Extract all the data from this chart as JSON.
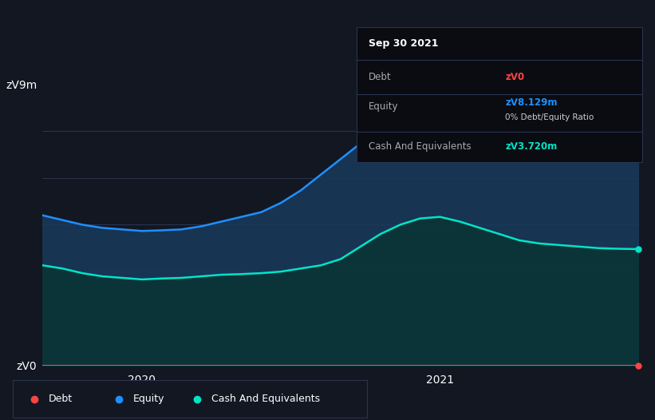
{
  "bg_color": "#131722",
  "plot_bg_color": "#131722",
  "grid_color": "#2a3350",
  "equity_color": "#1e90ff",
  "cash_color": "#00e5c8",
  "debt_color": "#ff4444",
  "equity_fill": "#1a3a5c",
  "cash_fill": "#0a3535",
  "ylim": [
    0,
    9000000
  ],
  "ytick_labels": [
    "zᐯ0",
    "zᐯ9m"
  ],
  "xlabel_2020": "2020",
  "xlabel_2021": "2021",
  "tooltip_title": "Sep 30 2021",
  "tooltip_debt_label": "Debt",
  "tooltip_debt_value": "zᐯ0",
  "tooltip_equity_label": "Equity",
  "tooltip_equity_value": "zᐯ8.129m",
  "tooltip_ratio": "0% Debt/Equity Ratio",
  "tooltip_cash_label": "Cash And Equivalents",
  "tooltip_cash_value": "zᐯ3.720m",
  "legend_debt": "Debt",
  "legend_equity": "Equity",
  "legend_cash": "Cash And Equivalents",
  "x_values": [
    0,
    1,
    2,
    3,
    4,
    5,
    6,
    7,
    8,
    9,
    10,
    11,
    12,
    13,
    14,
    15,
    16,
    17,
    18,
    19,
    20,
    21,
    22,
    23,
    24,
    25,
    26,
    27,
    28,
    29,
    30
  ],
  "equity_values": [
    4800000,
    4650000,
    4500000,
    4400000,
    4350000,
    4300000,
    4320000,
    4350000,
    4450000,
    4600000,
    4750000,
    4900000,
    5200000,
    5600000,
    6100000,
    6600000,
    7100000,
    7600000,
    8100000,
    8600000,
    8950000,
    9100000,
    9000000,
    8900000,
    8700000,
    8500000,
    8400000,
    8300000,
    8200000,
    8150000,
    8129000
  ],
  "cash_values": [
    3200000,
    3100000,
    2950000,
    2850000,
    2800000,
    2750000,
    2780000,
    2800000,
    2850000,
    2900000,
    2920000,
    2950000,
    3000000,
    3100000,
    3200000,
    3400000,
    3800000,
    4200000,
    4500000,
    4700000,
    4750000,
    4600000,
    4400000,
    4200000,
    4000000,
    3900000,
    3850000,
    3800000,
    3750000,
    3730000,
    3720000
  ],
  "debt_values": [
    0,
    0,
    0,
    0,
    0,
    0,
    0,
    0,
    0,
    0,
    0,
    0,
    0,
    0,
    0,
    0,
    0,
    0,
    0,
    0,
    0,
    0,
    0,
    0,
    0,
    0,
    0,
    0,
    0,
    0,
    0
  ],
  "x_tick_2020_idx": 5,
  "x_tick_2021_idx": 20,
  "grid_y_vals": [
    1500000,
    3000000,
    4500000,
    6000000,
    7500000
  ]
}
